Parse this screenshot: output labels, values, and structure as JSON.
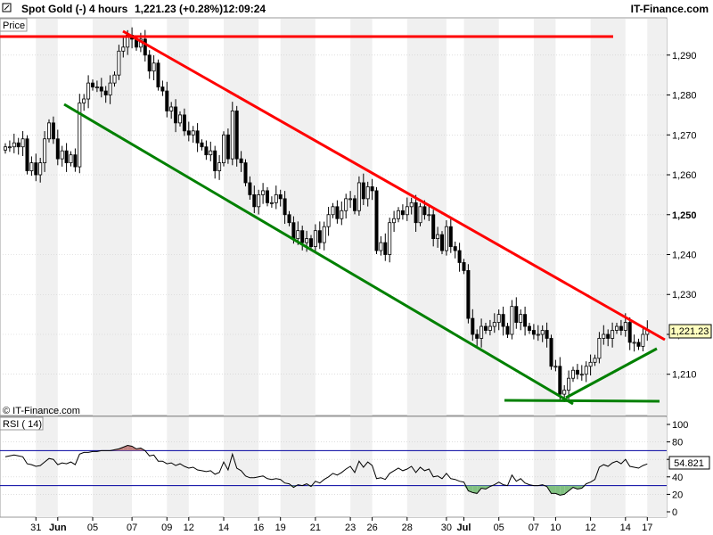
{
  "header": {
    "instrument": "Spot Gold (-)",
    "timeframe": "4 hours",
    "last_change": "1,221.23 (+0.28%)",
    "time": "12:09:24",
    "brand": "IT-Finance.com"
  },
  "price_panel": {
    "label": "Price",
    "watermark": "© IT-Finance.com",
    "last_price_label": "1,221.23"
  },
  "rsi_panel": {
    "label": "RSI ( 14)",
    "value_label": "54.821"
  },
  "colors": {
    "up_candle": "#ffffff",
    "down_candle": "#000000",
    "resistance": "#ff0000",
    "support": "#008000",
    "rsi_line": "#000000",
    "rsi_bands": "#0000a0",
    "rsi_fill": "#80c080",
    "rsi_fill_over": "#c08080",
    "stripe": "#f0f0f0",
    "grid": "#cccccc"
  },
  "chart_data": [
    {
      "type": "candlestick",
      "title": "",
      "ylim": [
        1201,
        1298
      ],
      "y_ticks": [
        1210,
        1220,
        1230,
        1240,
        1250,
        1260,
        1270,
        1280,
        1290
      ],
      "y_tick_labels": [
        "1,210",
        "1,220",
        "1,230",
        "1,240",
        "1,250",
        "1,260",
        "1,270",
        "1,280",
        "1,290"
      ],
      "x_ticks": [
        {
          "label": "31",
          "bar": 7
        },
        {
          "label": "Jun",
          "bar": 12
        },
        {
          "label": "05",
          "bar": 20
        },
        {
          "label": "07",
          "bar": 29
        },
        {
          "label": "09",
          "bar": 37
        },
        {
          "label": "12",
          "bar": 42
        },
        {
          "label": "14",
          "bar": 50
        },
        {
          "label": "16",
          "bar": 58
        },
        {
          "label": "19",
          "bar": 63
        },
        {
          "label": "21",
          "bar": 71
        },
        {
          "label": "23",
          "bar": 79
        },
        {
          "label": "26",
          "bar": 84
        },
        {
          "label": "28",
          "bar": 92
        },
        {
          "label": "30",
          "bar": 101
        },
        {
          "label": "Jul",
          "bar": 105
        },
        {
          "label": "05",
          "bar": 113
        },
        {
          "label": "07",
          "bar": 121
        },
        {
          "label": "10",
          "bar": 126
        },
        {
          "label": "12",
          "bar": 134
        },
        {
          "label": "14",
          "bar": 142
        },
        {
          "label": "17",
          "bar": 147
        }
      ],
      "last_price": 1221.23,
      "close": [
        1267,
        1267,
        1268,
        1267,
        1269,
        1261,
        1263,
        1260,
        1263,
        1269,
        1273,
        1269,
        1264,
        1266,
        1263,
        1265,
        1262,
        1278,
        1279,
        1283,
        1282,
        1282,
        1281,
        1280,
        1283,
        1285,
        1291,
        1292,
        1295,
        1294,
        1292,
        1294,
        1290,
        1286,
        1288,
        1282,
        1281,
        1276,
        1277,
        1273,
        1275,
        1271,
        1270,
        1271,
        1268,
        1267,
        1265,
        1266,
        1261,
        1263,
        1270,
        1264,
        1276,
        1264,
        1263,
        1258,
        1255,
        1252,
        1255,
        1256,
        1253,
        1253,
        1255,
        1254,
        1250,
        1248,
        1244,
        1246,
        1243,
        1244,
        1242,
        1246,
        1243,
        1247,
        1250,
        1252,
        1249,
        1251,
        1254,
        1254,
        1251,
        1258,
        1254,
        1257,
        1256,
        1241,
        1243,
        1240,
        1248,
        1249,
        1251,
        1250,
        1252,
        1253,
        1248,
        1252,
        1250,
        1250,
        1244,
        1245,
        1241,
        1247,
        1242,
        1241,
        1238,
        1236,
        1224,
        1220,
        1219,
        1222,
        1221,
        1222,
        1223,
        1225,
        1222,
        1220,
        1227,
        1223,
        1225,
        1222,
        1221,
        1220,
        1220,
        1221,
        1219,
        1212,
        1212,
        1205,
        1206,
        1209,
        1211,
        1210,
        1210,
        1212,
        1213,
        1214,
        1219,
        1220,
        1219,
        1221,
        1222,
        1221,
        1223,
        1218,
        1218,
        1217,
        1220,
        1221.23
      ],
      "rsi": {
        "ylim": [
          0,
          100
        ],
        "y_ticks": [
          0,
          20,
          40,
          60,
          80,
          100
        ],
        "upper_band": 70,
        "lower_band": 30,
        "last_value": 54.821,
        "values": [
          63,
          64,
          65,
          64,
          63,
          55,
          54,
          52,
          53,
          57,
          61,
          60,
          54,
          56,
          55,
          57,
          54,
          66,
          68,
          68,
          69,
          69,
          70,
          70,
          70,
          71,
          72,
          74,
          76,
          75,
          72,
          73,
          70,
          64,
          65,
          58,
          58,
          55,
          56,
          53,
          55,
          52,
          50,
          51,
          48,
          47,
          46,
          47,
          43,
          45,
          57,
          48,
          66,
          50,
          47,
          41,
          39,
          39,
          40,
          41,
          38,
          37,
          38,
          37,
          33,
          32,
          28,
          31,
          30,
          32,
          29,
          35,
          33,
          37,
          40,
          44,
          42,
          45,
          49,
          52,
          45,
          58,
          51,
          57,
          53,
          38,
          39,
          37,
          44,
          47,
          50,
          47,
          49,
          52,
          45,
          51,
          47,
          49,
          40,
          41,
          38,
          44,
          38,
          37,
          35,
          34,
          24,
          22,
          21,
          27,
          26,
          29,
          31,
          34,
          31,
          30,
          42,
          35,
          38,
          33,
          31,
          30,
          30,
          31,
          29,
          21,
          21,
          19,
          20,
          24,
          28,
          26,
          27,
          32,
          34,
          37,
          51,
          54,
          52,
          56,
          58,
          55,
          60,
          52,
          51,
          50,
          53,
          54.821
        ]
      }
    }
  ]
}
